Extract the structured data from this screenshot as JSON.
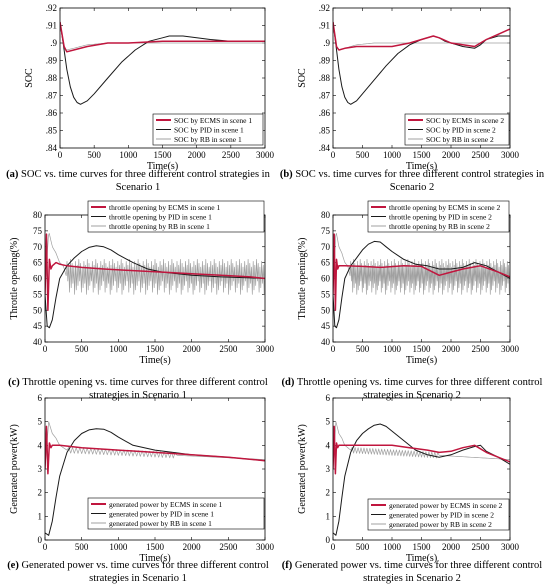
{
  "colors": {
    "ecms": "#c0163e",
    "pid": "#1a1a1a",
    "rb": "#a0a0a0"
  },
  "captions": [
    {
      "label": "(a)",
      "text": " SOC vs. time curves for three different control strategies in Scenario 1"
    },
    {
      "label": "(b)",
      "text": " SOC vs. time curves for three different control strategies in Scenario 2"
    },
    {
      "label": "(c)",
      "text": " Throttle opening vs. time curves for three different control strategies in Scenario 1"
    },
    {
      "label": "(d)",
      "text": " Throttle opening vs. time curves for three different control strategies in Scenario 2"
    },
    {
      "label": "(e)",
      "text": " Generated power vs. time curves for three different control strategies in Scenario 1"
    },
    {
      "label": "(f)",
      "text": " Generated power vs. time curves for three different control strategies in Scenario 2"
    }
  ],
  "chart_data": [
    {
      "type": "line",
      "id": "a",
      "xlabel": "Time(s)",
      "ylabel": "SOC",
      "xlim": [
        0,
        3000
      ],
      "ylim": [
        0.84,
        0.92
      ],
      "xticks": [
        0,
        500,
        1000,
        1500,
        2000,
        2500,
        3000
      ],
      "yticks": [
        0.84,
        0.85,
        0.86,
        0.87,
        0.88,
        0.89,
        0.9,
        0.91,
        0.92
      ],
      "legend_position": "bottom-right",
      "series": [
        {
          "name": "SOC by ECMS in scene 1",
          "role": "ecms",
          "x": [
            0,
            60,
            100,
            200,
            400,
            700,
            1000,
            1500,
            2000,
            2500,
            3000
          ],
          "y": [
            0.912,
            0.898,
            0.895,
            0.896,
            0.898,
            0.9,
            0.9,
            0.901,
            0.901,
            0.901,
            0.901
          ]
        },
        {
          "name": "SOC by PID in scene 1",
          "role": "pid",
          "x": [
            0,
            50,
            100,
            150,
            200,
            250,
            300,
            400,
            500,
            700,
            900,
            1100,
            1300,
            1500,
            1600,
            1800,
            2000,
            2200,
            2500,
            2800,
            3000
          ],
          "y": [
            0.912,
            0.899,
            0.885,
            0.875,
            0.869,
            0.866,
            0.865,
            0.867,
            0.871,
            0.88,
            0.889,
            0.896,
            0.901,
            0.903,
            0.904,
            0.904,
            0.903,
            0.902,
            0.901,
            0.901,
            0.901
          ]
        },
        {
          "name": "SOC by RB in scene 1",
          "role": "rb",
          "x": [
            0,
            60,
            100,
            200,
            400,
            700,
            1000,
            1500,
            2000,
            2500,
            3000
          ],
          "y": [
            0.912,
            0.897,
            0.896,
            0.897,
            0.899,
            0.9,
            0.9,
            0.9,
            0.9,
            0.9,
            0.9
          ]
        }
      ]
    },
    {
      "type": "line",
      "id": "b",
      "xlabel": "Time(s)",
      "ylabel": "SOC",
      "xlim": [
        0,
        3000
      ],
      "ylim": [
        0.84,
        0.92
      ],
      "xticks": [
        0,
        500,
        1000,
        1500,
        2000,
        2500,
        3000
      ],
      "yticks": [
        0.84,
        0.85,
        0.86,
        0.87,
        0.88,
        0.89,
        0.9,
        0.91,
        0.92
      ],
      "legend_position": "bottom-right",
      "series": [
        {
          "name": "SOC by ECMS in scene 2",
          "role": "ecms",
          "x": [
            0,
            60,
            100,
            200,
            400,
            700,
            1000,
            1300,
            1500,
            1700,
            1800,
            2000,
            2200,
            2400,
            2600,
            2800,
            3000
          ],
          "y": [
            0.912,
            0.898,
            0.896,
            0.897,
            0.898,
            0.898,
            0.898,
            0.9,
            0.902,
            0.904,
            0.903,
            0.9,
            0.899,
            0.898,
            0.902,
            0.905,
            0.908
          ]
        },
        {
          "name": "SOC by PID in scene 2",
          "role": "pid",
          "x": [
            0,
            50,
            100,
            150,
            200,
            250,
            300,
            400,
            500,
            700,
            900,
            1100,
            1300,
            1500,
            1700,
            1800,
            1900,
            2000,
            2200,
            2400,
            2500,
            2600,
            2700,
            2800,
            3000
          ],
          "y": [
            0.912,
            0.899,
            0.885,
            0.875,
            0.869,
            0.866,
            0.865,
            0.867,
            0.871,
            0.879,
            0.887,
            0.894,
            0.899,
            0.902,
            0.904,
            0.903,
            0.901,
            0.9,
            0.898,
            0.897,
            0.899,
            0.902,
            0.903,
            0.904,
            0.904
          ]
        },
        {
          "name": "SOC by RB in scene 2",
          "role": "rb",
          "x": [
            0,
            60,
            100,
            200,
            400,
            700,
            1000,
            1500,
            2000,
            2500,
            3000
          ],
          "y": [
            0.912,
            0.897,
            0.896,
            0.897,
            0.899,
            0.9,
            0.9,
            0.9,
            0.9,
            0.9,
            0.9
          ]
        }
      ]
    },
    {
      "type": "line",
      "id": "c",
      "xlabel": "Time(s)",
      "ylabel": "Throttle opening(%)",
      "xlim": [
        0,
        3000
      ],
      "ylim": [
        40,
        80
      ],
      "xticks": [
        0,
        500,
        1000,
        1500,
        2000,
        2500,
        3000
      ],
      "yticks": [
        40,
        45,
        50,
        55,
        60,
        65,
        70,
        75,
        80
      ],
      "legend_position": "top-right",
      "series": [
        {
          "name": "throttle opening by ECMS in scene 1",
          "role": "ecms",
          "x": [
            0,
            20,
            40,
            60,
            80,
            100,
            150,
            200,
            300,
            500,
            800,
            1200,
            1600,
            2000,
            2400,
            2800,
            3000
          ],
          "y": [
            55,
            74,
            50,
            66,
            63,
            64,
            65,
            64.5,
            64,
            63.5,
            63,
            62.5,
            62,
            61.5,
            61,
            60.5,
            60
          ]
        },
        {
          "name": "throttle opening by PID in scene 1",
          "role": "pid",
          "x": [
            0,
            30,
            60,
            100,
            150,
            200,
            300,
            400,
            500,
            600,
            700,
            800,
            900,
            1000,
            1200,
            1400,
            1600,
            2000,
            2400,
            2800,
            3000
          ],
          "y": [
            55,
            45,
            44.5,
            47,
            54,
            60,
            64,
            66.5,
            68.5,
            69.8,
            70.3,
            70,
            69,
            67.5,
            65,
            63,
            62,
            61,
            60.5,
            60.2,
            60
          ]
        },
        {
          "name": "throttle opening by RB in scene 1",
          "role": "rb",
          "x": [
            0,
            50,
            100,
            150,
            200,
            250,
            300,
            3000
          ],
          "y": [
            55,
            75,
            70,
            68,
            65,
            64,
            60,
            60
          ]
        }
      ]
    },
    {
      "type": "line",
      "id": "d",
      "xlabel": "Time(s)",
      "ylabel": "Throttle opening(%)",
      "xlim": [
        0,
        3000
      ],
      "ylim": [
        40,
        80
      ],
      "xticks": [
        0,
        500,
        1000,
        1500,
        2000,
        2500,
        3000
      ],
      "yticks": [
        40,
        45,
        50,
        55,
        60,
        65,
        70,
        75,
        80
      ],
      "legend_position": "top-right",
      "series": [
        {
          "name": "throttle opening by ECMS in scene 2",
          "role": "ecms",
          "x": [
            0,
            20,
            40,
            60,
            80,
            100,
            200,
            500,
            800,
            1200,
            1500,
            1800,
            2000,
            2200,
            2500,
            2800,
            3000
          ],
          "y": [
            55,
            74,
            50,
            66,
            63,
            64,
            64,
            63.8,
            63.5,
            64,
            63.8,
            61,
            62,
            63,
            64,
            62,
            60.5
          ]
        },
        {
          "name": "throttle opening by PID in scene 2",
          "role": "pid",
          "x": [
            0,
            30,
            60,
            100,
            150,
            200,
            300,
            400,
            500,
            600,
            700,
            800,
            900,
            1000,
            1200,
            1400,
            1600,
            1800,
            2000,
            2200,
            2400,
            2600,
            2800,
            3000
          ],
          "y": [
            55,
            45,
            44.5,
            47,
            54,
            60,
            64,
            66.5,
            69,
            70.8,
            71.7,
            71.5,
            70,
            68.5,
            66,
            64.5,
            64,
            63,
            63,
            63.5,
            65,
            64,
            62,
            60
          ]
        },
        {
          "name": "throttle opening by RB in scene 2",
          "role": "rb",
          "x": [
            0,
            50,
            100,
            150,
            200,
            250,
            300,
            3000
          ],
          "y": [
            55,
            75,
            70,
            68,
            65,
            64,
            60,
            60
          ]
        }
      ]
    },
    {
      "type": "line",
      "id": "e",
      "xlabel": "Time(s)",
      "ylabel": "Generated power(kW)",
      "xlim": [
        0,
        3000
      ],
      "ylim": [
        0,
        6
      ],
      "xticks": [
        0,
        500,
        1000,
        1500,
        2000,
        2500,
        3000
      ],
      "yticks": [
        0,
        1,
        2,
        3,
        4,
        5,
        6
      ],
      "legend_position": "bottom-right",
      "series": [
        {
          "name": "generated power by ECMS in scene 1",
          "role": "ecms",
          "x": [
            0,
            20,
            40,
            60,
            80,
            100,
            200,
            500,
            1000,
            1500,
            2000,
            2500,
            3000
          ],
          "y": [
            3,
            4.8,
            2.8,
            4.1,
            3.9,
            4.0,
            4.0,
            3.9,
            3.8,
            3.7,
            3.6,
            3.5,
            3.35
          ]
        },
        {
          "name": "generated power by PID in scene 1",
          "role": "pid",
          "x": [
            0,
            50,
            100,
            150,
            200,
            300,
            400,
            500,
            600,
            700,
            800,
            900,
            1000,
            1200,
            1500,
            2000,
            2500,
            3000
          ],
          "y": [
            0.3,
            0.2,
            0.8,
            1.8,
            2.7,
            3.7,
            4.2,
            4.5,
            4.65,
            4.7,
            4.68,
            4.55,
            4.35,
            4.0,
            3.8,
            3.6,
            3.5,
            3.35
          ]
        },
        {
          "name": "generated power by RB in scene 1",
          "role": "rb",
          "x": [
            0,
            50,
            100,
            150,
            200,
            250,
            300,
            3000
          ],
          "y": [
            3,
            5.0,
            4.5,
            4.3,
            4.0,
            3.9,
            3.8,
            3.4
          ]
        }
      ]
    },
    {
      "type": "line",
      "id": "f",
      "xlabel": "Time(s)",
      "ylabel": "Generated power(kW)",
      "xlim": [
        0,
        3000
      ],
      "ylim": [
        0,
        6
      ],
      "xticks": [
        0,
        500,
        1000,
        1500,
        2000,
        2500,
        3000
      ],
      "yticks": [
        0,
        1,
        2,
        3,
        4,
        5,
        6
      ],
      "legend_position": "bottom-right",
      "series": [
        {
          "name": "generated power by ECMS in scene 2",
          "role": "ecms",
          "x": [
            0,
            20,
            40,
            60,
            80,
            100,
            200,
            500,
            800,
            1000,
            1300,
            1600,
            1800,
            2000,
            2200,
            2400,
            2600,
            2800,
            3000
          ],
          "y": [
            3,
            4.8,
            2.8,
            4.1,
            3.9,
            4.0,
            4.0,
            4.0,
            4.0,
            4.0,
            3.9,
            3.8,
            3.7,
            3.75,
            3.9,
            4.0,
            3.7,
            3.5,
            3.3
          ]
        },
        {
          "name": "generated power by PID in scene 2",
          "role": "pid",
          "x": [
            0,
            50,
            100,
            150,
            200,
            300,
            400,
            500,
            600,
            700,
            800,
            900,
            1000,
            1200,
            1400,
            1600,
            1800,
            2000,
            2200,
            2400,
            2500,
            2600,
            2800,
            3000
          ],
          "y": [
            0.3,
            0.2,
            0.8,
            1.8,
            2.7,
            3.7,
            4.2,
            4.5,
            4.7,
            4.85,
            4.9,
            4.8,
            4.6,
            4.2,
            3.8,
            3.6,
            3.5,
            3.6,
            3.8,
            3.95,
            4.0,
            3.75,
            3.5,
            3.2
          ]
        },
        {
          "name": "generated power by RB in scene 2",
          "role": "rb",
          "x": [
            0,
            50,
            100,
            150,
            200,
            250,
            300,
            3000
          ],
          "y": [
            3,
            5.0,
            4.5,
            4.3,
            4.0,
            3.9,
            3.8,
            3.4
          ]
        }
      ]
    }
  ]
}
